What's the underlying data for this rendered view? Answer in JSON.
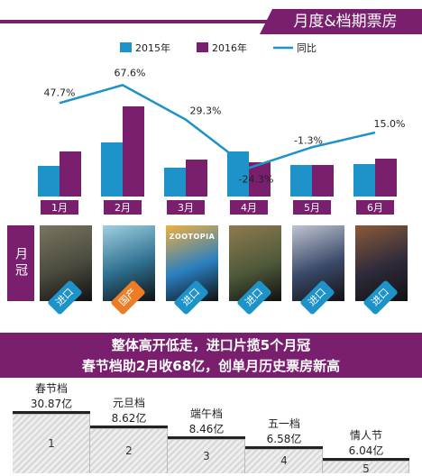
{
  "title": "月度&档期票房",
  "chart_data": {
    "type": "bar+line",
    "categories": [
      "1月",
      "2月",
      "3月",
      "4月",
      "5月",
      "6月"
    ],
    "series": [
      {
        "name": "2015年",
        "type": "bar",
        "color": "#1d93c9",
        "values": [
          34,
          60,
          32,
          50,
          35,
          36
        ]
      },
      {
        "name": "2016年",
        "type": "bar",
        "color": "#7a1f6e",
        "values": [
          50,
          100,
          41,
          38,
          35,
          42
        ]
      },
      {
        "name": "同比",
        "type": "line",
        "color": "#1d93c9",
        "values": [
          47.7,
          67.6,
          29.3,
          -24.3,
          -1.3,
          15.0
        ],
        "labels": [
          "47.7%",
          "67.6%",
          "29.3%",
          "-24.3%",
          "-1.3%",
          "15.0%"
        ]
      }
    ]
  },
  "posters": {
    "label": "月冠",
    "items": [
      {
        "title": "",
        "tag": "进口",
        "bg": "#4a4a3e",
        "accent": "#7a7560",
        "tag_color": "blue"
      },
      {
        "title": "",
        "tag": "国产",
        "bg": "#2d6e8e",
        "accent": "#9fd0e0",
        "tag_color": "orange"
      },
      {
        "title": "ZOOTOPIA",
        "tag": "进口",
        "bg": "#2a7fc0",
        "accent": "#f0b040",
        "tag_color": "blue"
      },
      {
        "title": "",
        "tag": "进口",
        "bg": "#4f5a3a",
        "accent": "#8f7a50",
        "tag_color": "blue"
      },
      {
        "title": "",
        "tag": "进口",
        "bg": "#3b4a6a",
        "accent": "#c0c4d0",
        "tag_color": "blue"
      },
      {
        "title": "",
        "tag": "进口",
        "bg": "#2e2a3a",
        "accent": "#8a5a3a",
        "tag_color": "blue"
      }
    ]
  },
  "banner": {
    "line1": "整体高开低走，进口片揽5个月冠",
    "line2": "春节档助2月收68亿，创单月历史票房新高"
  },
  "ranking": [
    {
      "name": "春节档",
      "value": "30.87亿",
      "rank": "1"
    },
    {
      "name": "元旦档",
      "value": "8.62亿",
      "rank": "2"
    },
    {
      "name": "端午档",
      "value": "8.46亿",
      "rank": "3"
    },
    {
      "name": "五一档",
      "value": "6.58亿",
      "rank": "4"
    },
    {
      "name": "情人节",
      "value": "6.04亿",
      "rank": "5"
    }
  ]
}
